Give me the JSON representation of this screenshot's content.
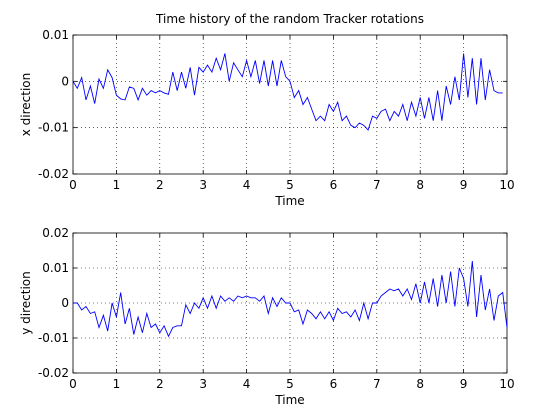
{
  "figure": {
    "background": "#ffffff",
    "line_color": "#0000ff"
  },
  "chart_data": [
    {
      "type": "line",
      "title": "Time history of the random Tracker rotations",
      "xlabel": "Time",
      "ylabel": "x direction",
      "xlim": [
        0,
        10
      ],
      "ylim": [
        -0.02,
        0.01
      ],
      "xticks": [
        "0",
        "1",
        "2",
        "3",
        "4",
        "5",
        "6",
        "7",
        "8",
        "9",
        "10"
      ],
      "yticks": [
        "0.01",
        "0",
        "-0.01",
        "-0.02"
      ],
      "ytick_values": [
        0.01,
        0,
        -0.01,
        -0.02
      ],
      "grid": true,
      "series": [
        {
          "x": [
            0,
            0.1,
            0.2,
            0.3,
            0.4,
            0.5,
            0.6,
            0.7,
            0.8,
            0.9,
            1.0,
            1.1,
            1.2,
            1.3,
            1.4,
            1.5,
            1.6,
            1.7,
            1.8,
            1.9,
            2.0,
            2.1,
            2.2,
            2.3,
            2.4,
            2.5,
            2.6,
            2.7,
            2.8,
            2.9,
            3.0,
            3.1,
            3.2,
            3.3,
            3.4,
            3.5,
            3.6,
            3.7,
            3.8,
            3.9,
            4.0,
            4.1,
            4.2,
            4.3,
            4.4,
            4.5,
            4.6,
            4.7,
            4.8,
            4.9,
            5.0,
            5.1,
            5.2,
            5.3,
            5.4,
            5.5,
            5.6,
            5.7,
            5.8,
            5.9,
            6.0,
            6.1,
            6.2,
            6.3,
            6.4,
            6.5,
            6.6,
            6.7,
            6.8,
            6.9,
            7.0,
            7.1,
            7.2,
            7.3,
            7.4,
            7.5,
            7.6,
            7.7,
            7.8,
            7.9,
            8.0,
            8.1,
            8.2,
            8.3,
            8.4,
            8.5,
            8.6,
            8.7,
            8.8,
            8.9,
            9.0,
            9.1,
            9.2,
            9.3,
            9.4,
            9.5,
            9.6,
            9.7,
            9.8,
            9.9
          ],
          "values": [
            0,
            -0.0015,
            0.0008,
            -0.004,
            -0.001,
            -0.0048,
            0.0005,
            -0.0015,
            0.0025,
            0.0008,
            -0.003,
            -0.0038,
            -0.004,
            -0.0012,
            -0.0015,
            -0.004,
            -0.0015,
            -0.003,
            -0.002,
            -0.0025,
            -0.002,
            -0.0025,
            -0.0028,
            0.002,
            -0.002,
            0.002,
            -0.0015,
            0.003,
            -0.003,
            0.003,
            0.002,
            0.0035,
            0.002,
            0.005,
            0.0025,
            0.006,
            0,
            0.004,
            0.0025,
            0.001,
            0.0045,
            0.001,
            0.0045,
            -0.0005,
            0.0045,
            -0.001,
            0.0045,
            -0.001,
            0.0045,
            0.001,
            0,
            -0.0035,
            -0.002,
            -0.005,
            -0.0035,
            -0.006,
            -0.0085,
            -0.0075,
            -0.0085,
            -0.005,
            -0.0065,
            -0.0045,
            -0.0085,
            -0.0075,
            -0.0095,
            -0.01,
            -0.009,
            -0.0095,
            -0.0105,
            -0.0075,
            -0.008,
            -0.0065,
            -0.006,
            -0.0085,
            -0.0065,
            -0.0075,
            -0.005,
            -0.0085,
            -0.0045,
            -0.0075,
            -0.0035,
            -0.008,
            -0.0035,
            -0.0085,
            -0.002,
            -0.0085,
            -0.001,
            -0.005,
            0.001,
            -0.004,
            0.006,
            -0.0035,
            0.005,
            -0.005,
            0.005,
            -0.004,
            0.0025,
            -0.002,
            -0.0025,
            -0.0025
          ]
        }
      ]
    },
    {
      "type": "line",
      "title": "",
      "xlabel": "Time",
      "ylabel": "y direction",
      "xlim": [
        0,
        10
      ],
      "ylim": [
        -0.02,
        0.02
      ],
      "xticks": [
        "0",
        "1",
        "2",
        "3",
        "4",
        "5",
        "6",
        "7",
        "8",
        "9",
        "10"
      ],
      "yticks": [
        "0.02",
        "0.01",
        "0",
        "-0.01",
        "-0.02"
      ],
      "ytick_values": [
        0.02,
        0.01,
        0,
        -0.01,
        -0.02
      ],
      "grid": true,
      "series": [
        {
          "x": [
            0,
            0.1,
            0.2,
            0.3,
            0.4,
            0.5,
            0.6,
            0.7,
            0.8,
            0.9,
            1.0,
            1.1,
            1.2,
            1.3,
            1.4,
            1.5,
            1.6,
            1.7,
            1.8,
            1.9,
            2.0,
            2.1,
            2.2,
            2.3,
            2.4,
            2.5,
            2.6,
            2.7,
            2.8,
            2.9,
            3.0,
            3.1,
            3.2,
            3.3,
            3.4,
            3.5,
            3.6,
            3.7,
            3.8,
            3.9,
            4.0,
            4.1,
            4.2,
            4.3,
            4.4,
            4.5,
            4.6,
            4.7,
            4.8,
            4.9,
            5.0,
            5.1,
            5.2,
            5.3,
            5.4,
            5.5,
            5.6,
            5.7,
            5.8,
            5.9,
            6.0,
            6.1,
            6.2,
            6.3,
            6.4,
            6.5,
            6.6,
            6.7,
            6.8,
            6.9,
            7.0,
            7.1,
            7.2,
            7.3,
            7.4,
            7.5,
            7.6,
            7.7,
            7.8,
            7.9,
            8.0,
            8.1,
            8.2,
            8.3,
            8.4,
            8.5,
            8.6,
            8.7,
            8.8,
            8.9,
            9.0,
            9.1,
            9.2,
            9.3,
            9.4,
            9.5,
            9.6,
            9.7,
            9.8,
            9.9,
            10.0
          ],
          "values": [
            0,
            0,
            -0.002,
            -0.001,
            -0.003,
            -0.0025,
            -0.007,
            -0.0035,
            -0.008,
            0,
            -0.004,
            0.003,
            -0.006,
            -0.0015,
            -0.009,
            -0.004,
            -0.0085,
            -0.003,
            -0.007,
            -0.006,
            -0.0085,
            -0.0065,
            -0.0095,
            -0.007,
            -0.0065,
            -0.0065,
            -0.0005,
            -0.003,
            0,
            -0.0015,
            0.0015,
            -0.0015,
            0.002,
            -0.0015,
            0.002,
            0.0005,
            0.0015,
            0.0005,
            0.002,
            0.0015,
            0.002,
            0.0015,
            0.0015,
            0.0005,
            0.002,
            -0.003,
            0.0015,
            -0.001,
            0.0015,
            0,
            0,
            -0.0025,
            -0.002,
            -0.006,
            -0.002,
            -0.003,
            -0.0045,
            -0.0025,
            -0.0045,
            -0.0025,
            -0.005,
            -0.0015,
            -0.003,
            -0.0025,
            -0.004,
            -0.002,
            -0.005,
            0,
            -0.0045,
            0,
            0,
            0.002,
            0.003,
            0.004,
            0.0035,
            0.004,
            0.002,
            0.004,
            0.001,
            0.0055,
            0,
            0.006,
            0,
            0.007,
            -0.001,
            0.008,
            0,
            0.009,
            -0.001,
            0.01,
            0.007,
            -0.001,
            0.012,
            -0.004,
            0.008,
            -0.002,
            0.004,
            -0.005,
            0.002,
            0.003,
            -0.007
          ]
        }
      ]
    }
  ]
}
